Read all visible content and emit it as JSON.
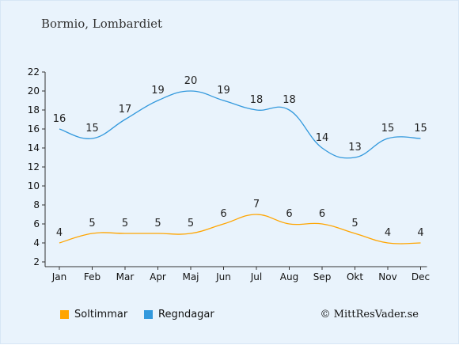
{
  "title": "Bormio, Lombardiet",
  "credit": "© MittResVader.se",
  "colors": {
    "sun": "#ffa500",
    "rain": "#3399dd"
  },
  "chart_data": {
    "type": "line",
    "categories": [
      "Jan",
      "Feb",
      "Mar",
      "Apr",
      "Maj",
      "Jun",
      "Jul",
      "Aug",
      "Sep",
      "Okt",
      "Nov",
      "Dec"
    ],
    "series": [
      {
        "name": "Soltimmar",
        "values": [
          4,
          5,
          5,
          5,
          5,
          6,
          7,
          6,
          6,
          5,
          4,
          4
        ]
      },
      {
        "name": "Regndagar",
        "values": [
          16,
          15,
          17,
          19,
          20,
          19,
          18,
          18,
          14,
          13,
          15,
          15
        ]
      }
    ],
    "yticks": [
      2,
      4,
      6,
      8,
      10,
      12,
      14,
      16,
      18,
      20,
      22
    ],
    "ylim": [
      2,
      22
    ],
    "legend_position": "bottom-left"
  }
}
